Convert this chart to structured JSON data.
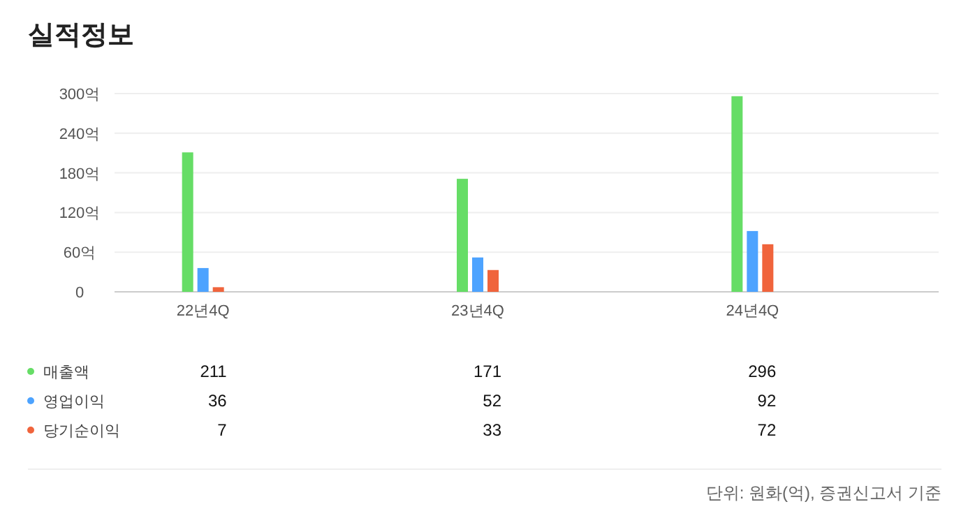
{
  "chart_data": {
    "type": "bar",
    "title": "실적정보",
    "categories": [
      "22년4Q",
      "23년4Q",
      "24년4Q"
    ],
    "series": [
      {
        "name": "매출액",
        "color": "#66dd66",
        "values": [
          211,
          171,
          296
        ]
      },
      {
        "name": "영업이익",
        "color": "#4da3ff",
        "values": [
          36,
          52,
          92
        ]
      },
      {
        "name": "당기순이익",
        "color": "#f0643c",
        "values": [
          7,
          33,
          72
        ]
      }
    ],
    "ylim": [
      0,
      300
    ],
    "yticks": [
      0,
      {
        "value": 60,
        "label": "60억"
      },
      {
        "value": 120,
        "label": "120억"
      },
      {
        "value": 180,
        "label": "180억"
      },
      {
        "value": 240,
        "label": "240억"
      },
      {
        "value": 300,
        "label": "300억"
      }
    ],
    "grid": "y",
    "legend": "bottom",
    "data_labels": true,
    "annotations": [
      "단위: 원화(억), 증권신고서 기준"
    ]
  }
}
